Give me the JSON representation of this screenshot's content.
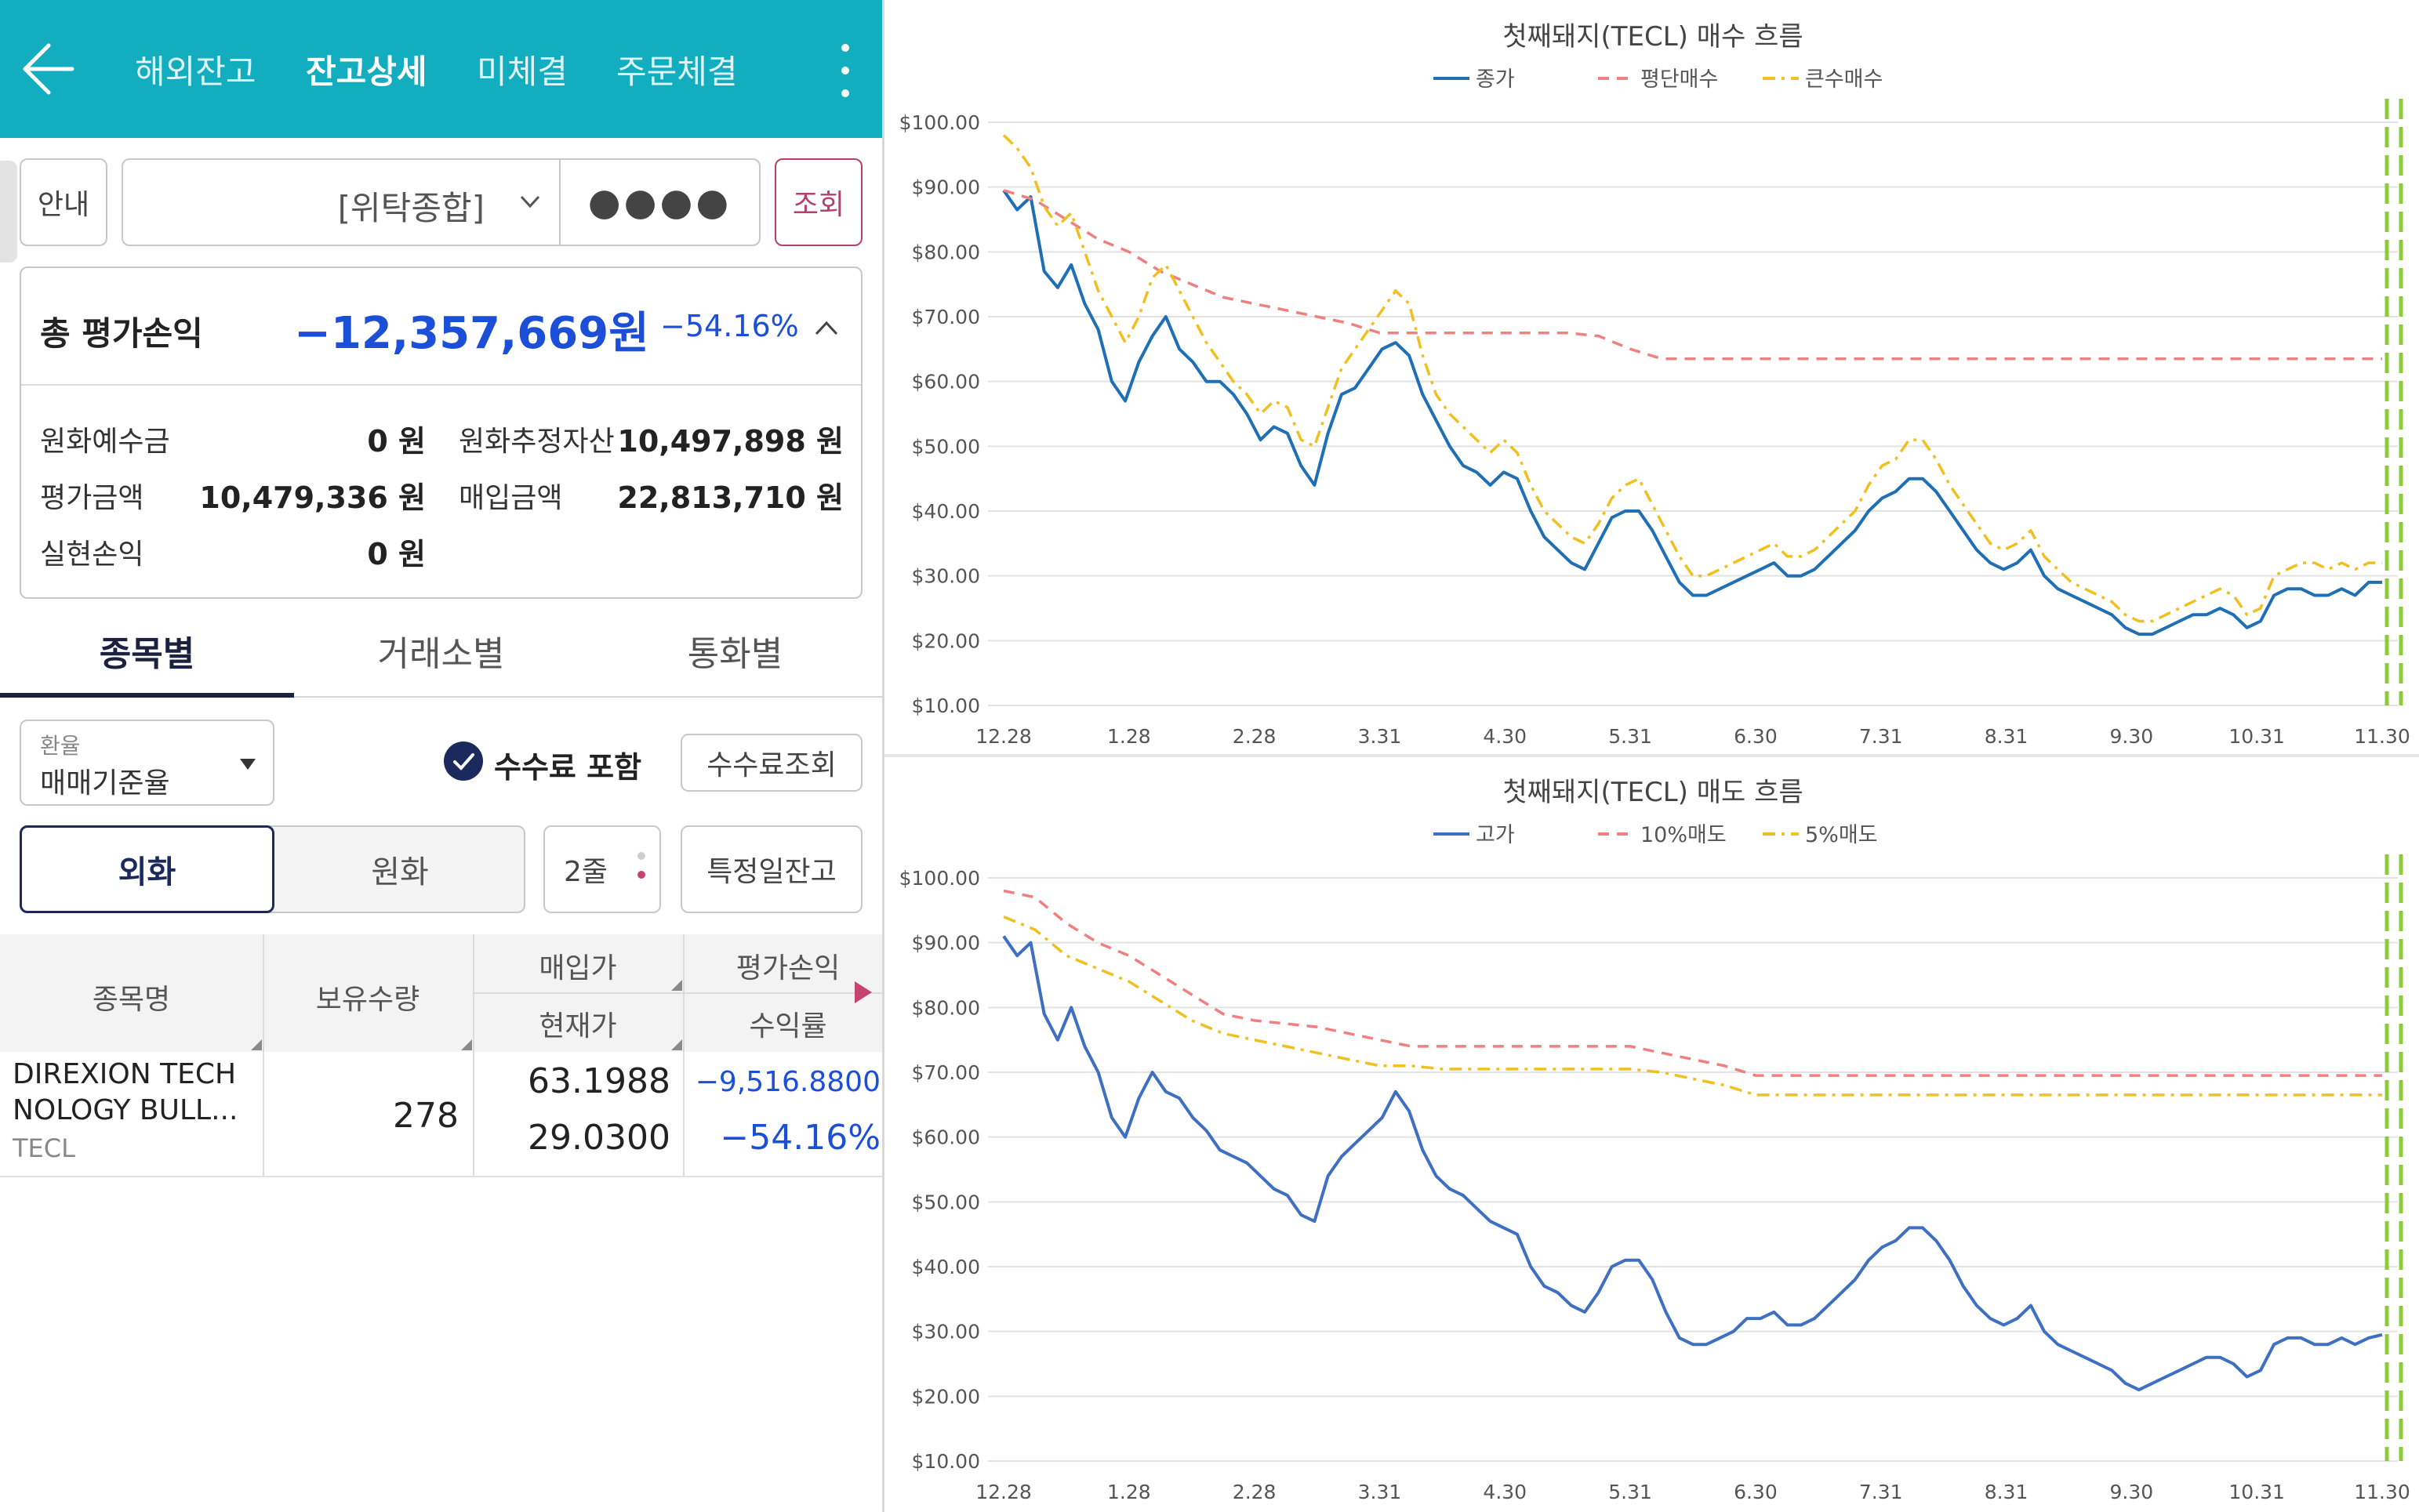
{
  "header": {
    "tabs": [
      {
        "label": "해외잔고"
      },
      {
        "label": "잔고상세"
      },
      {
        "label": "미체결"
      },
      {
        "label": "주문체결"
      }
    ]
  },
  "toolbar": {
    "guide_label": "안내",
    "account": "[위탁종합]",
    "password_mask": "●●●●",
    "search_label": "조회"
  },
  "summary": {
    "total_label": "총 평가손익",
    "total_value": "−12,357,669원",
    "total_pct": "−54.16%",
    "krw_deposit_label": "원화예수금",
    "krw_deposit_value": "0 원",
    "krw_est_asset_label": "원화추정자산",
    "krw_est_asset_value": "10,497,898 원",
    "eval_amount_label": "평가금액",
    "eval_amount_value": "10,479,336 원",
    "buy_amount_label": "매입금액",
    "buy_amount_value": "22,813,710 원",
    "realized_label": "실현손익",
    "realized_value": "0 원"
  },
  "sub_tabs": [
    {
      "label": "종목별"
    },
    {
      "label": "거래소별"
    },
    {
      "label": "통화별"
    }
  ],
  "filters": {
    "fx_label": "환율",
    "fx_value": "매매기준율",
    "fee_include_label": "수수료 포함",
    "fee_query_label": "수수료조회",
    "foreign_label": "외화",
    "krw_label": "원화",
    "rows_label": "2줄",
    "date_balance_label": "특정일잔고"
  },
  "grid": {
    "headers": {
      "name": "종목명",
      "qty": "보유수량",
      "buy_price": "매입가",
      "cur_price": "현재가",
      "pnl": "평가손익",
      "rate": "수익률"
    },
    "rows": [
      {
        "name_line1": "DIREXION TECH",
        "name_line2": "NOLOGY BULL...",
        "ticker": "TECL",
        "qty": "278",
        "buy_price": "63.1988",
        "cur_price": "29.0300",
        "pnl": "−9,516.8800",
        "rate": "−54.16%"
      }
    ]
  },
  "colors": {
    "header_bg": "#12adbf",
    "negative": "#1c4fd8",
    "accent": "#c4446f",
    "navy": "#1a2a5c"
  },
  "chart_data": [
    {
      "type": "line",
      "title": "첫째돼지(TECL) 매수 흐름",
      "ylim": [
        10,
        100
      ],
      "yticks": [
        "$100.00",
        "$90.00",
        "$80.00",
        "$70.00",
        "$60.00",
        "$50.00",
        "$40.00",
        "$30.00",
        "$20.00",
        "$10.00"
      ],
      "xticks": [
        "12.28",
        "1.28",
        "2.28",
        "3.31",
        "4.30",
        "5.31",
        "6.30",
        "7.31",
        "8.31",
        "9.30",
        "10.31",
        "11.30"
      ],
      "legend_position": "top-center",
      "series": [
        {
          "name": "종가",
          "color": "#1f6fb4",
          "style": "solid",
          "values": [
            89.5,
            86.5,
            88.5,
            77,
            74.5,
            78,
            72,
            68,
            60,
            57,
            63,
            67,
            70,
            65,
            63,
            60,
            60,
            58,
            55,
            51,
            53,
            52,
            47,
            44,
            52,
            58,
            59,
            62,
            65,
            66,
            64,
            58,
            54,
            50,
            47,
            46,
            44,
            46,
            45,
            40,
            36,
            34,
            32,
            31,
            35,
            39,
            40,
            40,
            37,
            33,
            29,
            27,
            27,
            28,
            29,
            30,
            31,
            32,
            30,
            30,
            31,
            33,
            35,
            37,
            40,
            42,
            43,
            45,
            45,
            43,
            40,
            37,
            34,
            32,
            31,
            32,
            34,
            30,
            28,
            27,
            26,
            25,
            24,
            22,
            21,
            21,
            22,
            23,
            24,
            24,
            25,
            24,
            22,
            23,
            27,
            28,
            28,
            27,
            27,
            28,
            27,
            29,
            29
          ],
          "step_days": 3.3
        },
        {
          "name": "평단매수",
          "color": "#f08080",
          "style": "dashed",
          "values": [
            89.5,
            88,
            85,
            82,
            80,
            77,
            75,
            73,
            72,
            71,
            70,
            69,
            67.5,
            67.5,
            67.5,
            67.5,
            67.5,
            67.5,
            67.5,
            67,
            65,
            63.5,
            63.5,
            63.5,
            63.5,
            63.5,
            63.5,
            63.5,
            63.5,
            63.5,
            63.5,
            63.5,
            63.5,
            63.5,
            63.5,
            63.5,
            63.5,
            63.5,
            63.5,
            63.5,
            63.5,
            63.5,
            63.5,
            63.5,
            63.5
          ]
        },
        {
          "name": "큰수매수",
          "color": "#f0c020",
          "style": "dashdot",
          "values": [
            98,
            96,
            93,
            87,
            84,
            86,
            80,
            74,
            70,
            66,
            70,
            76,
            78,
            74,
            70,
            66,
            63,
            60,
            58,
            55,
            57,
            56,
            51,
            50,
            56,
            62,
            65,
            68,
            71,
            74,
            72,
            64,
            58,
            55,
            53,
            51,
            49,
            51,
            49,
            44,
            40,
            38,
            36,
            35,
            38,
            42,
            44,
            45,
            41,
            37,
            33,
            30,
            30,
            31,
            32,
            33,
            34,
            35,
            33,
            33,
            34,
            36,
            38,
            40,
            44,
            47,
            48,
            51,
            51,
            48,
            44,
            41,
            38,
            35,
            34,
            35,
            37,
            33,
            31,
            29,
            28,
            27,
            26,
            24,
            23,
            23,
            24,
            25,
            26,
            27,
            28,
            27,
            24,
            25,
            30,
            31,
            32,
            32,
            31,
            32,
            31,
            32,
            32
          ]
        }
      ]
    },
    {
      "type": "line",
      "title": "첫째돼지(TECL) 매도 흐름",
      "ylim": [
        10,
        100
      ],
      "yticks": [
        "$100.00",
        "$90.00",
        "$80.00",
        "$70.00",
        "$60.00",
        "$50.00",
        "$40.00",
        "$30.00",
        "$20.00",
        "$10.00"
      ],
      "xticks": [
        "12.28",
        "1.28",
        "2.28",
        "3.31",
        "4.30",
        "5.31",
        "6.30",
        "7.31",
        "8.31",
        "9.30",
        "10.31",
        "11.30"
      ],
      "legend_position": "top-center",
      "series": [
        {
          "name": "고가",
          "color": "#3e6fc0",
          "style": "solid",
          "values": [
            91,
            88,
            90,
            79,
            75,
            80,
            74,
            70,
            63,
            60,
            66,
            70,
            67,
            66,
            63,
            61,
            58,
            57,
            56,
            54,
            52,
            51,
            48,
            47,
            54,
            57,
            59,
            61,
            63,
            67,
            64,
            58,
            54,
            52,
            51,
            49,
            47,
            46,
            45,
            40,
            37,
            36,
            34,
            33,
            36,
            40,
            41,
            41,
            38,
            33,
            29,
            28,
            28,
            29,
            30,
            32,
            32,
            33,
            31,
            31,
            32,
            34,
            36,
            38,
            41,
            43,
            44,
            46,
            46,
            44,
            41,
            37,
            34,
            32,
            31,
            32,
            34,
            30,
            28,
            27,
            26,
            25,
            24,
            22,
            21,
            22,
            23,
            24,
            25,
            26,
            26,
            25,
            23,
            24,
            28,
            29,
            29,
            28,
            28,
            29,
            28,
            29,
            29.5
          ]
        },
        {
          "name": "10%매도",
          "color": "#f08080",
          "style": "dashed",
          "values": [
            98,
            97,
            93,
            90,
            88,
            85,
            82,
            79,
            78,
            77.5,
            77,
            76,
            75,
            74,
            74,
            74,
            74,
            74,
            74,
            74,
            74,
            73,
            72,
            71,
            69.5,
            69.5,
            69.5,
            69.5,
            69.5,
            69.5,
            69.5,
            69.5,
            69.5,
            69.5,
            69.5,
            69.5,
            69.5,
            69.5,
            69.5,
            69.5,
            69.5,
            69.5,
            69.5,
            69.5,
            69.5
          ]
        },
        {
          "name": "5%매도",
          "color": "#f0c020",
          "style": "dashdot",
          "values": [
            94,
            92,
            88,
            86,
            84,
            81,
            78,
            76,
            75,
            74,
            73,
            72,
            71,
            71,
            70.5,
            70.5,
            70.5,
            70.5,
            70.5,
            70.5,
            70.5,
            70,
            69,
            68,
            66.5,
            66.5,
            66.5,
            66.5,
            66.5,
            66.5,
            66.5,
            66.5,
            66.5,
            66.5,
            66.5,
            66.5,
            66.5,
            66.5,
            66.5,
            66.5,
            66.5,
            66.5,
            66.5,
            66.5,
            66.5
          ]
        }
      ]
    }
  ]
}
